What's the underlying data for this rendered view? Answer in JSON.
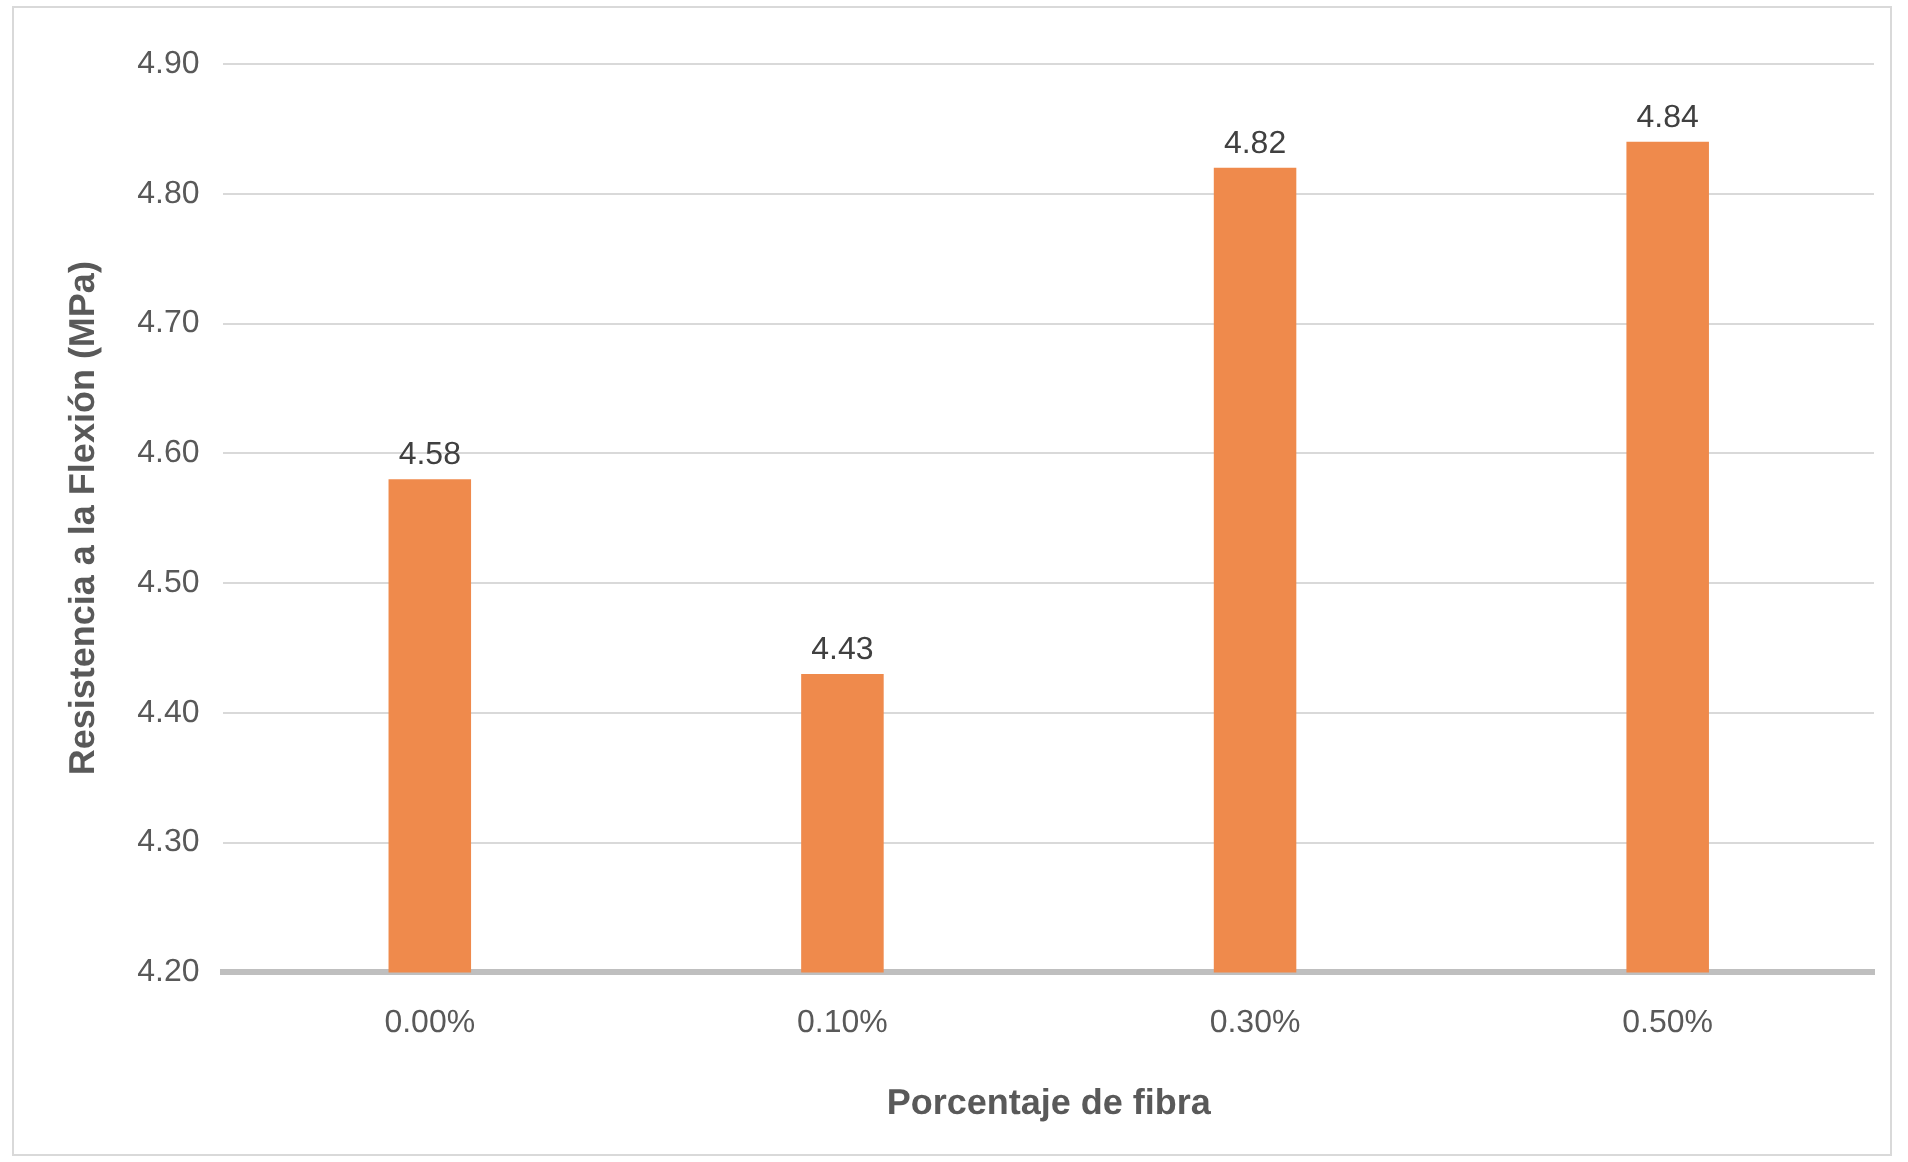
{
  "chart_data": {
    "type": "bar",
    "xlabel": "Porcentaje de fibra",
    "ylabel": "Resistencia a la Flexión (MPa)",
    "categories": [
      "0.00%",
      "0.10%",
      "0.30%",
      "0.50%"
    ],
    "values": [
      4.58,
      4.43,
      4.82,
      4.84
    ],
    "color": "#ef8a4c",
    "ylim": [
      4.2,
      4.9
    ],
    "yticks": [
      {
        "value": 4.2,
        "label": "4.20"
      },
      {
        "value": 4.3,
        "label": "4.30"
      },
      {
        "value": 4.4,
        "label": "4.40"
      },
      {
        "value": 4.5,
        "label": "4.50"
      },
      {
        "value": 4.6,
        "label": "4.60"
      },
      {
        "value": 4.7,
        "label": "4.70"
      },
      {
        "value": 4.8,
        "label": "4.80"
      },
      {
        "value": 4.9,
        "label": "4.90"
      }
    ],
    "grid": "y",
    "data_labels": true,
    "legend": false
  }
}
